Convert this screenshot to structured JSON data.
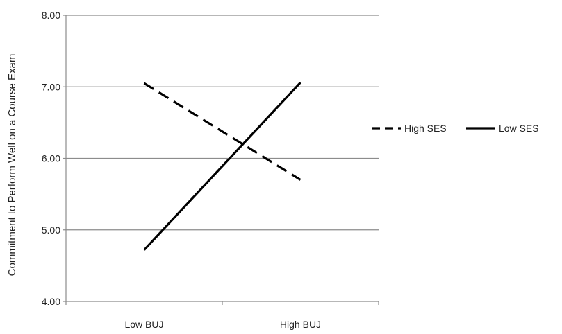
{
  "chart_data": {
    "type": "line",
    "title": "",
    "xlabel": "",
    "ylabel": "Commitment to Perform Well on a Course Exam",
    "categories": [
      "Low BUJ",
      "High BUJ"
    ],
    "ylim": [
      4.0,
      8.0
    ],
    "yticks": [
      "4.00",
      "5.00",
      "6.00",
      "7.00",
      "8.00"
    ],
    "grid": true,
    "legend_position": "right",
    "series": [
      {
        "name": "High SES",
        "values": [
          7.05,
          5.7
        ],
        "style": "dashed",
        "color": "#000000"
      },
      {
        "name": "Low SES",
        "values": [
          4.72,
          7.06
        ],
        "style": "solid",
        "color": "#000000"
      }
    ]
  }
}
